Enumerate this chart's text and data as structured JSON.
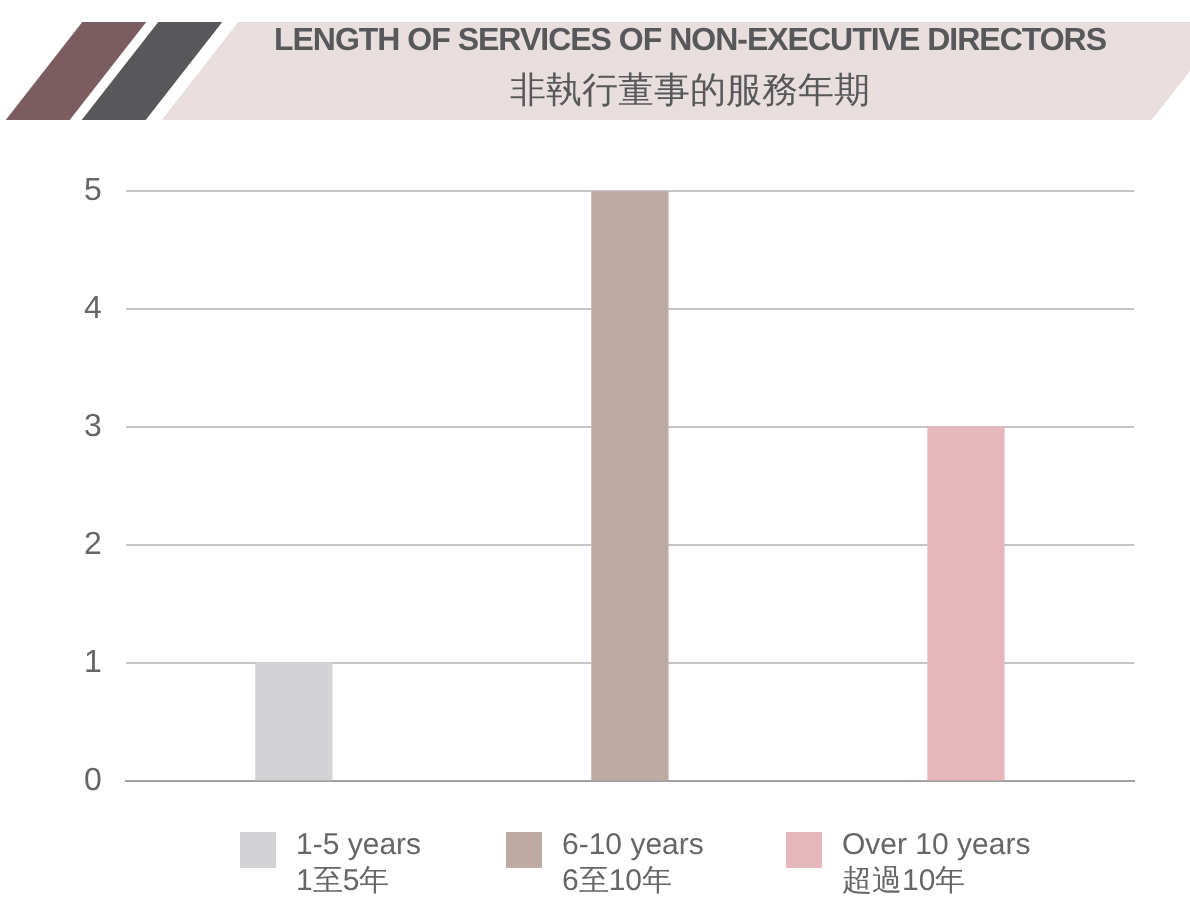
{
  "chart_data": {
    "type": "bar",
    "title": "LENGTH OF SERVICES OF NON-EXECUTIVE DIRECTORS",
    "subtitle": "非執行董事的服務年期",
    "categories": [
      null,
      null,
      null
    ],
    "series": [
      {
        "name": "1-5 years\n1至5年",
        "color": "#d3d3d5",
        "values": [
          1,
          null,
          null
        ]
      },
      {
        "name": "6-10 years\n6至10年",
        "color": "#bfaaa3",
        "values": [
          null,
          5,
          null
        ]
      },
      {
        "name": "Over 10 years\n超過10年",
        "color": "#e6b8bb",
        "values": [
          null,
          null,
          3
        ]
      }
    ],
    "ylim": [
      0,
      5
    ],
    "yticks": [
      0,
      1,
      2,
      3,
      4,
      5
    ],
    "grid": "y",
    "legend": "bottom"
  }
}
